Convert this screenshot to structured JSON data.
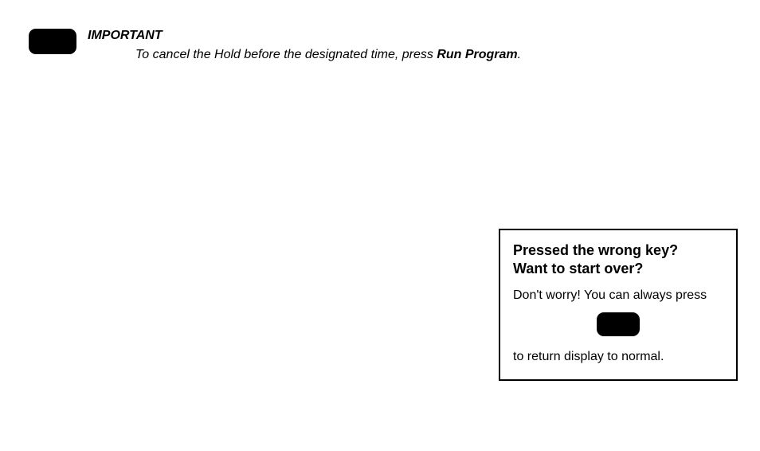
{
  "important": {
    "heading": "IMPORTANT",
    "body_prefix": "To cancel the Hold before the designated time, press ",
    "body_bold": "Run Program",
    "body_suffix": "."
  },
  "callout": {
    "title_line1": "Pressed the wrong key?",
    "title_line2": "Want to start over?",
    "line1": "Don't worry! You can always press",
    "line2": "to return display to normal."
  },
  "colors": {
    "text": "#000000",
    "background": "#ffffff",
    "key_fill": "#000000",
    "border": "#000000"
  }
}
